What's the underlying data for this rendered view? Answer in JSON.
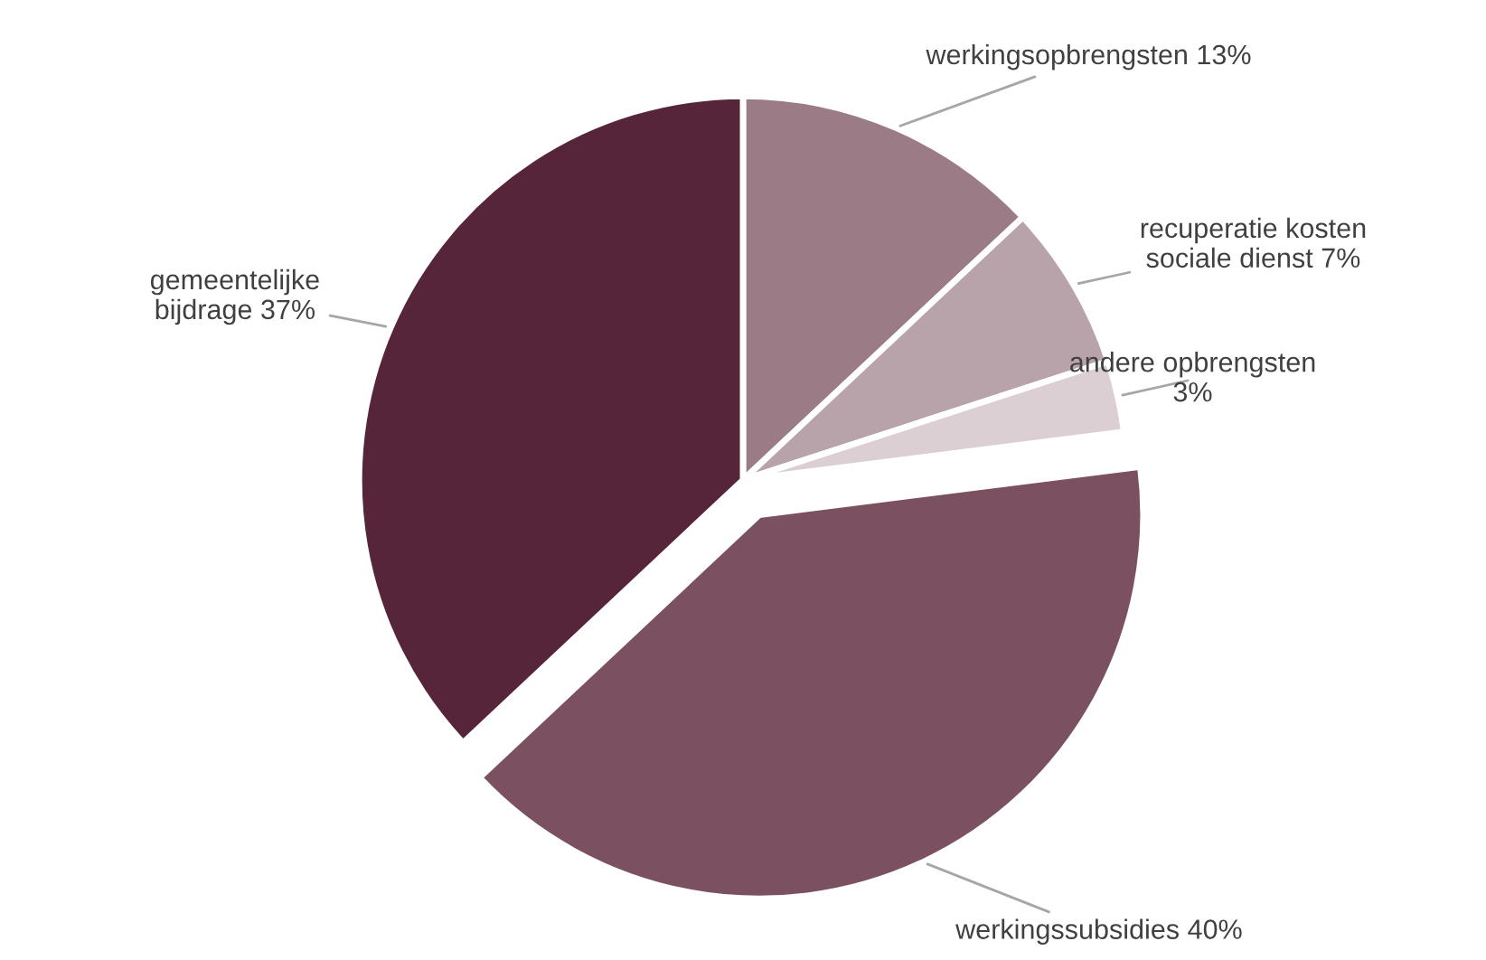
{
  "chart_data": {
    "type": "pie",
    "categories": [
      "werkingsopbrengsten",
      "recuperatie kosten\nsociale dienst",
      "andere opbrengsten\n",
      "werkingssubsidies",
      "gemeentelijke\nbijdrage"
    ],
    "values": [
      13,
      7,
      3,
      40,
      37
    ],
    "colors": [
      "#9b7b86",
      "#b9a3ab",
      "#dccfd3",
      "#7b5060",
      "#57253a"
    ],
    "value_labels": [
      "13%",
      "7%",
      "3%",
      "40%",
      "37%"
    ],
    "legend": false
  }
}
